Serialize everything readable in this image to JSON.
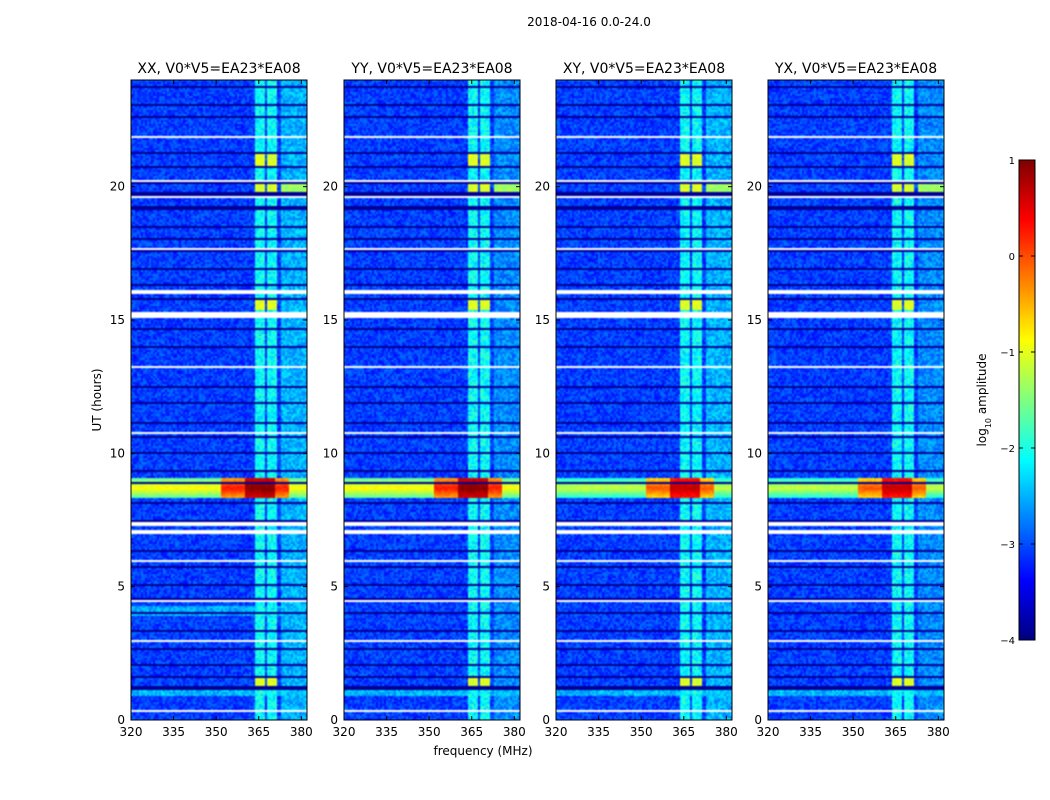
{
  "chart_data": {
    "type": "heatmap",
    "suptitle": "2018-04-16 0.0-24.0",
    "xlabel": "frequency (MHz)",
    "ylabel": "UT (hours)",
    "xlim": [
      320,
      382
    ],
    "ylim": [
      0,
      24
    ],
    "xticks": [
      "320",
      "335",
      "350",
      "365",
      "380"
    ],
    "yticks": [
      "0",
      "5",
      "10",
      "15",
      "20"
    ],
    "panels": [
      {
        "title": "XX, V0*V5=EA23*EA08"
      },
      {
        "title": "YY, V0*V5=EA23*EA08"
      },
      {
        "title": "XY, V0*V5=EA23*EA08"
      },
      {
        "title": "YX, V0*V5=EA23*EA08"
      }
    ],
    "colorbar": {
      "label": "log10 amplitude",
      "label_base": "log",
      "label_sub": "10",
      "label_rest": " amplitude",
      "colormap": "jet",
      "vmin": -4,
      "vmax": 1,
      "ticks": [
        "1",
        "0",
        "−1",
        "−2",
        "−3",
        "−4"
      ]
    },
    "rfi_bands_mhz": [
      [
        363.5,
        367.5
      ],
      [
        367.7,
        371.5
      ],
      [
        372.5,
        377.5
      ],
      [
        378,
        382
      ]
    ],
    "strong_event_ut": [
      8.3,
      9.1
    ]
  }
}
